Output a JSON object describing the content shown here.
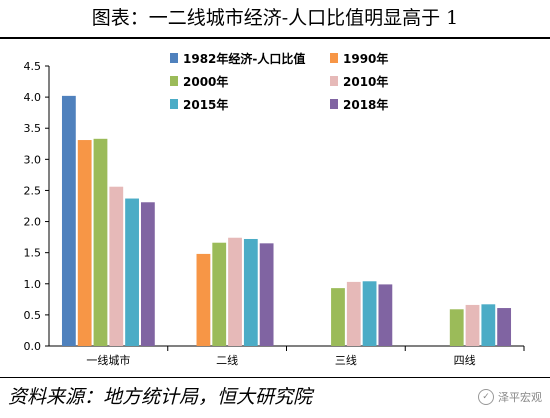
{
  "header": {
    "title": "图表：一二线城市经济-人口比值明显高于 1"
  },
  "footer": {
    "source": "资料来源：地方统计局，恒大研究院",
    "watermark": "泽平宏观"
  },
  "colors": {
    "1982": "#4f81bd",
    "1990": "#f79646",
    "2000": "#9bbb59",
    "2010": "#e6b9b8",
    "2015": "#4bacc6",
    "2018": "#8064a2"
  },
  "chart_data": {
    "type": "bar",
    "title": "",
    "xlabel": "",
    "ylabel": "",
    "categories": [
      "一线城市",
      "二线",
      "三线",
      "四线"
    ],
    "ylim": [
      0,
      4.5
    ],
    "ytick_step": 0.5,
    "yticks": [
      "0.0",
      "0.5",
      "1.0",
      "1.5",
      "2.0",
      "2.5",
      "3.0",
      "3.5",
      "4.0",
      "4.5"
    ],
    "grid": false,
    "legend_position": "top-right",
    "series": [
      {
        "name": "1982年经济-人口比值",
        "color": "#4f81bd",
        "values": [
          4.02,
          null,
          null,
          null
        ]
      },
      {
        "name": "1990年",
        "color": "#f79646",
        "values": [
          3.31,
          1.48,
          null,
          null
        ]
      },
      {
        "name": "2000年",
        "color": "#9bbb59",
        "values": [
          3.33,
          1.66,
          0.93,
          0.59
        ]
      },
      {
        "name": "2010年",
        "color": "#e6b9b8",
        "values": [
          2.56,
          1.74,
          1.03,
          0.66
        ]
      },
      {
        "name": "2015年",
        "color": "#4bacc6",
        "values": [
          2.37,
          1.72,
          1.04,
          0.67
        ]
      },
      {
        "name": "2018年",
        "color": "#8064a2",
        "values": [
          2.31,
          1.65,
          0.99,
          0.61
        ]
      }
    ]
  }
}
